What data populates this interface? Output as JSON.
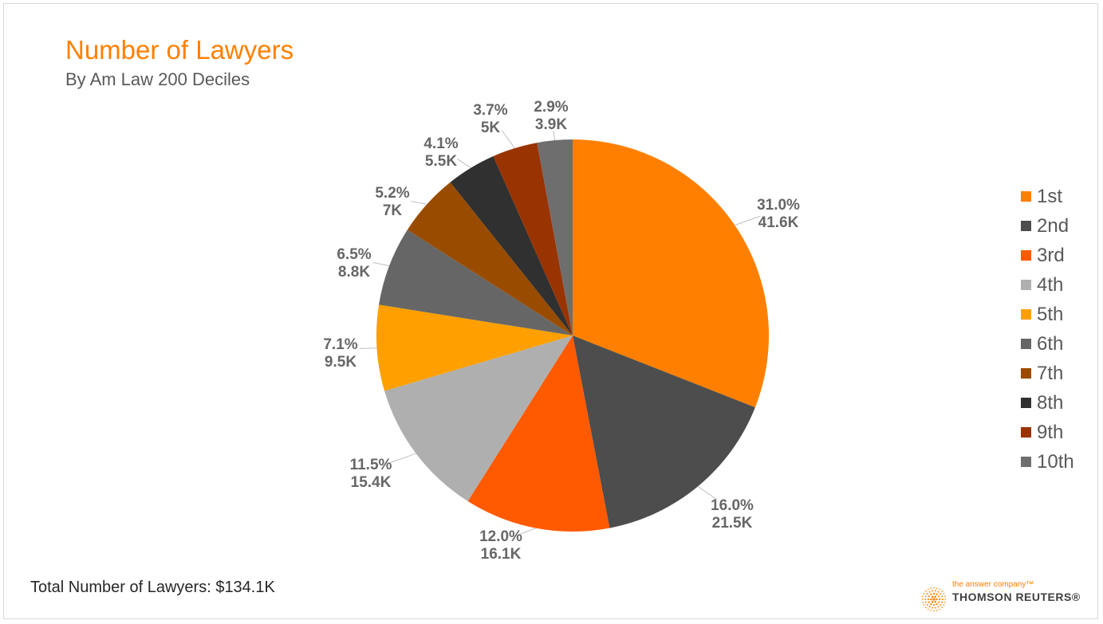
{
  "header": {
    "title": "Number of Lawyers",
    "subtitle": "By Am Law 200 Deciles"
  },
  "chart_data": {
    "type": "pie",
    "title": "Number of Lawyers",
    "subtitle": "By Am Law 200 Deciles",
    "categories": [
      "1st",
      "2nd",
      "3rd",
      "4th",
      "5th",
      "6th",
      "7th",
      "8th",
      "9th",
      "10th"
    ],
    "values": [
      41.6,
      21.5,
      16.1,
      15.4,
      9.5,
      8.8,
      7.0,
      5.5,
      5.0,
      3.9
    ],
    "percent_labels": [
      "31.0%",
      "16.0%",
      "12.0%",
      "11.5%",
      "7.1%",
      "6.5%",
      "5.2%",
      "4.1%",
      "3.7%",
      "2.9%"
    ],
    "value_labels": [
      "41.6K",
      "21.5K",
      "16.1K",
      "15.4K",
      "9.5K",
      "8.8K",
      "7K",
      "5.5K",
      "5K",
      "3.9K"
    ],
    "colors": [
      "#ff8000",
      "#4d4d4d",
      "#ff5a00",
      "#afafaf",
      "#ffa000",
      "#666666",
      "#994c00",
      "#303030",
      "#993300",
      "#6e6e6e"
    ],
    "legend_position": "right",
    "start_angle": "12 o'clock, clockwise"
  },
  "footer": {
    "total_text": "Total Number of Lawyers: $134.1K"
  },
  "brand": {
    "tagline": "the answer company™",
    "name": "THOMSON REUTERS®",
    "logo_icon": "thomson-reuters-dot-globe-icon"
  }
}
